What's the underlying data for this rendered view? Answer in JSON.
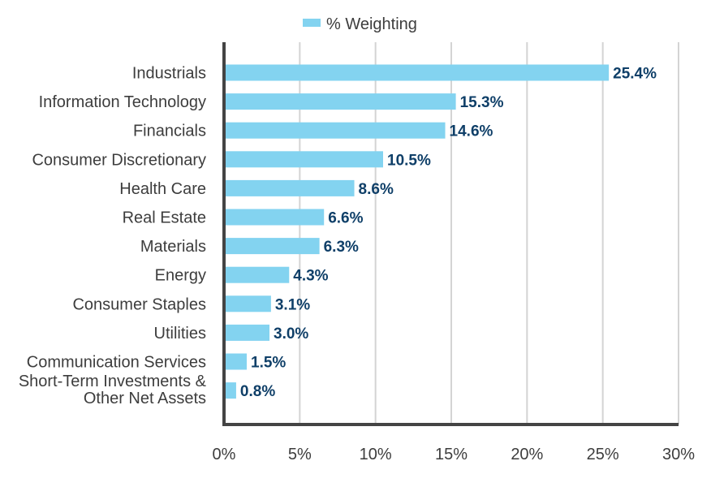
{
  "chart_data": {
    "type": "bar",
    "orientation": "horizontal",
    "categories": [
      "Industrials",
      "Information Technology",
      "Financials",
      "Consumer Discretionary",
      "Health Care",
      "Real Estate",
      "Materials",
      "Energy",
      "Consumer Staples",
      "Utilities",
      "Communication Services",
      "Short-Term Investments & Other Net Assets"
    ],
    "series": [
      {
        "name": "% Weighting",
        "values": [
          25.4,
          15.3,
          14.6,
          10.5,
          8.6,
          6.6,
          6.3,
          4.3,
          3.1,
          3.0,
          1.5,
          0.8
        ]
      }
    ],
    "data_labels": [
      "25.4%",
      "15.3%",
      "14.6%",
      "10.5%",
      "8.6%",
      "6.6%",
      "6.3%",
      "4.3%",
      "3.1%",
      "3.0%",
      "1.5%",
      "0.8%"
    ],
    "x_ticks": [
      "0%",
      "5%",
      "10%",
      "15%",
      "20%",
      "25%",
      "30%"
    ],
    "xlim": [
      0,
      30
    ],
    "grid": "vertical",
    "legend_position": "top-center",
    "colors": {
      "bar": "#83d3f0",
      "data_label": "#0f3f68",
      "axis": "#444444",
      "grid": "#d4d4d4",
      "text": "#3d3d3d"
    }
  }
}
